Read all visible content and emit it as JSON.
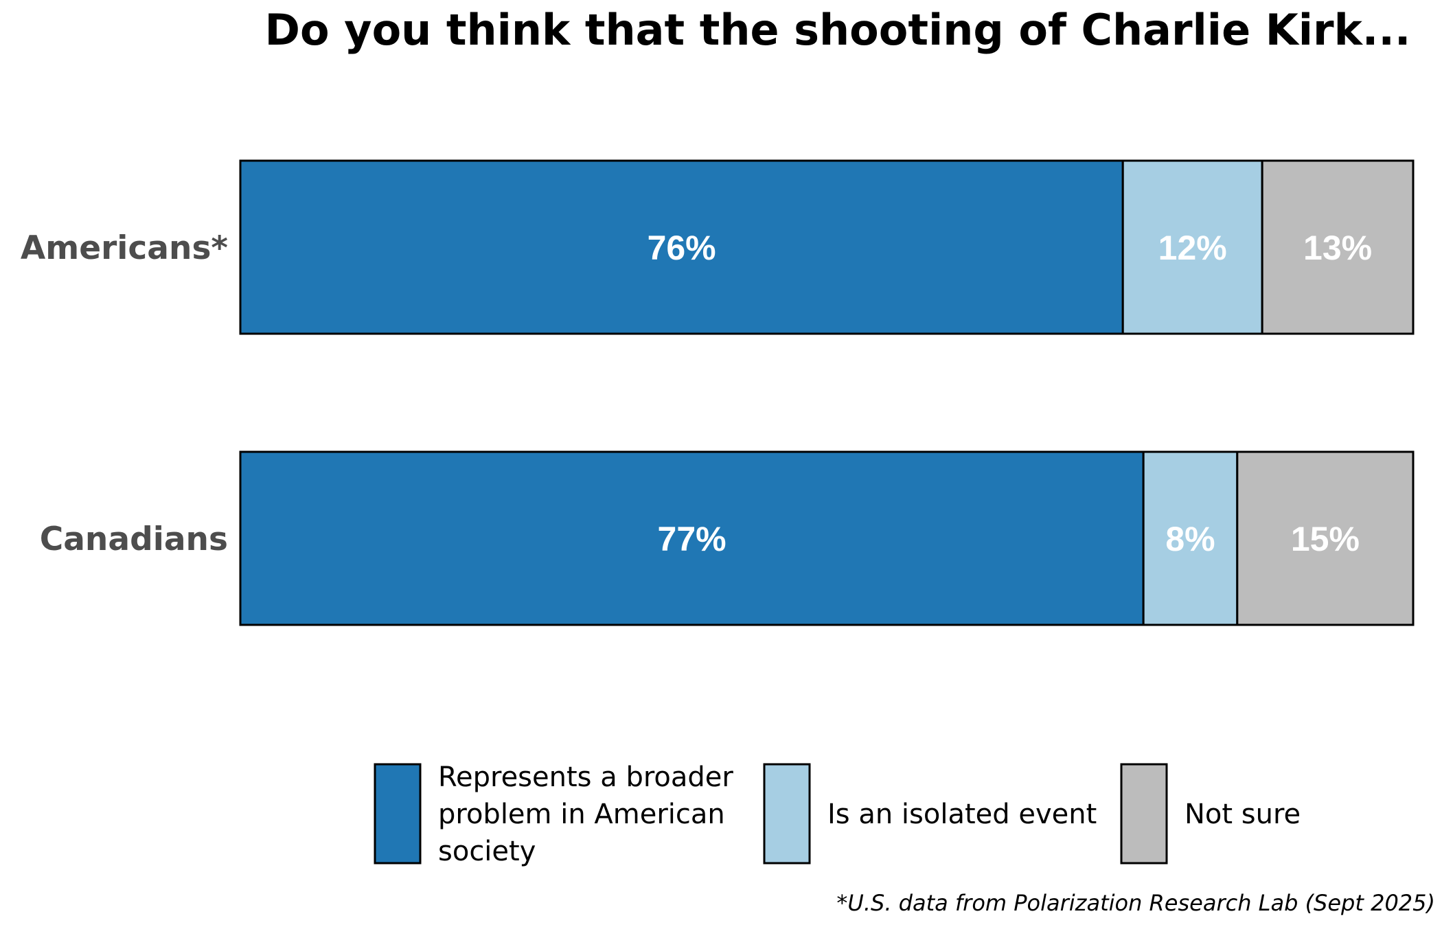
{
  "chart_data": {
    "type": "bar",
    "orientation": "horizontal",
    "stacked": true,
    "title": "Do you think that the shooting of Charlie Kirk...",
    "categories": [
      "Americans*",
      "Canadians"
    ],
    "series": [
      {
        "name": "Represents a broader problem in American society",
        "legend_lines": [
          "Represents a broader",
          "problem in American",
          "society"
        ],
        "color": "#2077b4",
        "values": [
          76,
          77
        ],
        "labels": [
          "76%",
          "77%"
        ]
      },
      {
        "name": "Is an isolated event",
        "legend_lines": [
          "Is an isolated event"
        ],
        "color": "#a6cee3",
        "values": [
          12,
          8
        ],
        "labels": [
          "12%",
          "8%"
        ]
      },
      {
        "name": "Not sure",
        "legend_lines": [
          "Not sure"
        ],
        "color": "#bcbcbc",
        "values": [
          13,
          15
        ],
        "labels": [
          "13%",
          "15%"
        ]
      }
    ],
    "xlim": [
      0,
      100
    ],
    "grid": false,
    "legend_position": "bottom",
    "footnote": "*U.S. data from Polarization Research Lab (Sept 2025)"
  }
}
